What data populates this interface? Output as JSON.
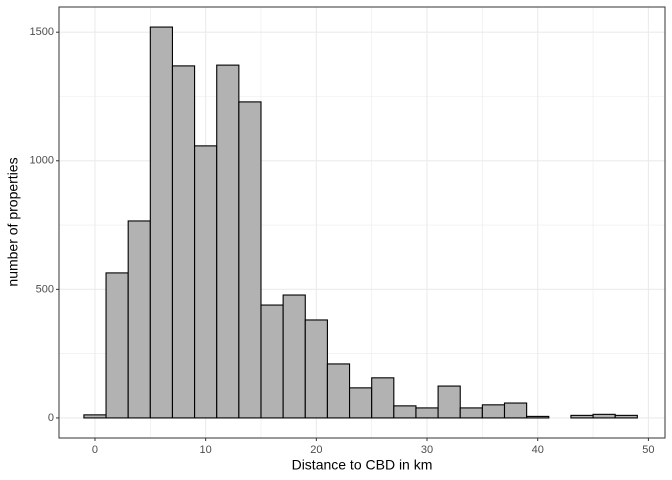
{
  "chart_data": {
    "type": "histogram",
    "x_label": "Distance to CBD in km",
    "y_label": "number of properties",
    "bins": [
      -1,
      1,
      3,
      5,
      7,
      9,
      11,
      13,
      15,
      17,
      19,
      21,
      23,
      25,
      27,
      29,
      31,
      33,
      35,
      37,
      39,
      41,
      43,
      45,
      47,
      49
    ],
    "values": [
      12,
      564,
      766,
      1520,
      1369,
      1058,
      1372,
      1229,
      439,
      478,
      381,
      210,
      117,
      156,
      47,
      39,
      124,
      39,
      51,
      58,
      6,
      0,
      10,
      14,
      10
    ],
    "color": "#b2b2b2",
    "xlim": [
      -3.25,
      51.5
    ],
    "ylim": [
      -78,
      1598
    ],
    "xticks": [
      0,
      10,
      20,
      30,
      40,
      50
    ],
    "yticks": [
      0,
      500,
      1000,
      1500
    ],
    "grid": true
  }
}
